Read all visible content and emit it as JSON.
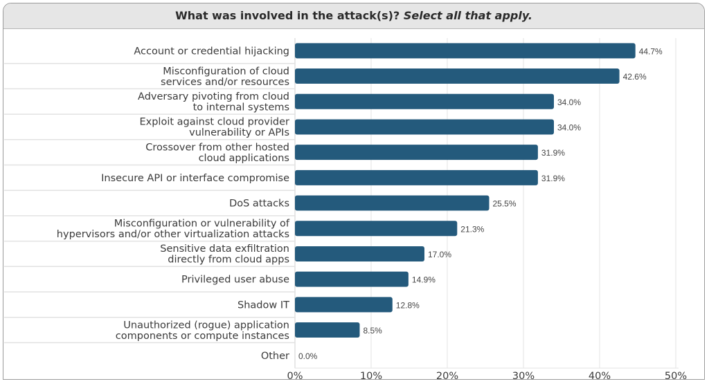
{
  "chart_data": {
    "type": "bar",
    "orientation": "horizontal",
    "title": "What was involved in the attack(s)?",
    "subtitle": "Select all that apply.",
    "categories": [
      [
        "Account or credential hijacking"
      ],
      [
        "Misconfiguration of cloud",
        "services and/or resources"
      ],
      [
        "Adversary pivoting from cloud",
        "to internal systems"
      ],
      [
        "Exploit against cloud provider",
        "vulnerability or APIs"
      ],
      [
        "Crossover from other hosted",
        "cloud applications"
      ],
      [
        "Insecure API or interface compromise"
      ],
      [
        "DoS attacks"
      ],
      [
        "Misconfiguration or vulnerability of",
        "hypervisors and/or other virtualization attacks"
      ],
      [
        "Sensitive data exfiltration",
        "directly from cloud apps"
      ],
      [
        "Privileged user abuse"
      ],
      [
        "Shadow IT"
      ],
      [
        "Unauthorized (rogue) application",
        "components or compute instances"
      ],
      [
        "Other"
      ]
    ],
    "values": [
      44.7,
      42.6,
      34.0,
      34.0,
      31.9,
      31.9,
      25.5,
      21.3,
      17.0,
      14.9,
      12.8,
      8.5,
      0.0
    ],
    "data_labels": [
      "44.7%",
      "42.6%",
      "34.0%",
      "34.0%",
      "31.9%",
      "31.9%",
      "25.5%",
      "21.3%",
      "17.0%",
      "14.9%",
      "12.8%",
      "8.5%",
      "0.0%"
    ],
    "xlim": [
      0,
      50
    ],
    "xticks": [
      "0%",
      "10%",
      "20%",
      "30%",
      "40%",
      "50%"
    ],
    "xtick_values": [
      0,
      10,
      20,
      30,
      40,
      50
    ],
    "grid": true,
    "bar_color": "#245a7c",
    "header_bg": "#e6e6e6"
  }
}
